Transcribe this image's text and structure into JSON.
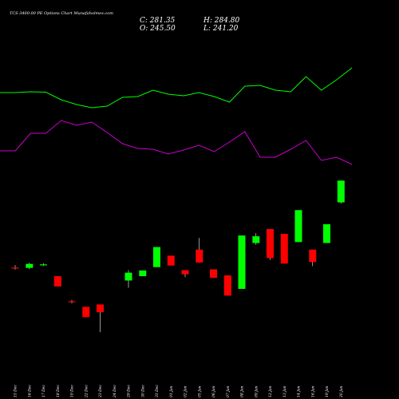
{
  "chart_data": {
    "type": "candlestick",
    "title": "TCS 3400.00 PE Options Chart Munafaholmes.com",
    "ohlc": {
      "close_label": "C: 281.35",
      "high_label": "H: 284.80",
      "open_label": "O: 245.50",
      "low_label": "L: 241.20"
    },
    "x_labels": [
      "15 Dec",
      "16 Dec",
      "17 Dec",
      "18 Dec",
      "19 Dec",
      "22 Dec",
      "23 Dec",
      "24 Dec",
      "29 Dec",
      "30 Dec",
      "31 Dec",
      "01 Jan",
      "02 Jan",
      "05 Jan",
      "06 Jan",
      "07 Jan",
      "08 Jan",
      "09 Jan",
      "12 Jan",
      "13 Jan",
      "14 Jan",
      "16 Jan",
      "19 Jan",
      "20 Jan"
    ],
    "candles": [
      {
        "date": "15 Dec",
        "open": 90.8,
        "high": 92.3,
        "low": 89.5,
        "close": 90.2
      },
      {
        "date": "16 Dec",
        "open": 90.6,
        "high": 93.8,
        "low": 89.8,
        "close": 93.1
      },
      {
        "date": "17 Dec",
        "open": 92.8,
        "high": 93.5,
        "low": 91.9,
        "close": 92.8
      },
      {
        "date": "18 Dec",
        "open": 85.4,
        "high": 85.4,
        "low": 78.9,
        "close": 78.9
      },
      {
        "date": "19 Dec",
        "open": 69.6,
        "high": 70.5,
        "low": 68.3,
        "close": 69.0
      },
      {
        "date": "22 Dec",
        "open": 66.1,
        "high": 66.1,
        "low": 59.6,
        "close": 59.6
      },
      {
        "date": "23 Dec",
        "open": 67.6,
        "high": 67.6,
        "low": 50.1,
        "close": 62.7
      },
      {
        "date": "29 Dec",
        "open": 82.7,
        "high": 89.2,
        "low": 78.1,
        "close": 87.6
      },
      {
        "date": "30 Dec",
        "open": 85.4,
        "high": 89.0,
        "low": 85.4,
        "close": 89.0
      },
      {
        "date": "31 Dec",
        "open": 91.1,
        "high": 103.7,
        "low": 91.1,
        "close": 103.7
      },
      {
        "date": "01 Jan",
        "open": 98.3,
        "high": 98.3,
        "low": 92.1,
        "close": 92.1
      },
      {
        "date": "02 Jan",
        "open": 89.2,
        "high": 89.2,
        "low": 84.8,
        "close": 86.6
      },
      {
        "date": "05 Jan",
        "open": 102.1,
        "high": 109.5,
        "low": 93.8,
        "close": 94.0
      },
      {
        "date": "06 Jan",
        "open": 89.7,
        "high": 89.7,
        "low": 84.3,
        "close": 84.3
      },
      {
        "date": "07 Jan",
        "open": 85.9,
        "high": 85.9,
        "low": 73.2,
        "close": 73.2
      },
      {
        "date": "08 Jan",
        "open": 77.4,
        "high": 111.0,
        "low": 77.4,
        "close": 111.0
      },
      {
        "date": "09 Jan",
        "open": 106.3,
        "high": 112.4,
        "low": 105.2,
        "close": 110.5
      },
      {
        "date": "12 Jan",
        "open": 115.1,
        "high": 115.1,
        "low": 95.7,
        "close": 96.8
      },
      {
        "date": "13 Jan",
        "open": 112.0,
        "high": 112.0,
        "low": 93.3,
        "close": 93.3
      },
      {
        "date": "14 Jan",
        "open": 106.9,
        "high": 127.0,
        "low": 106.9,
        "close": 127.0
      },
      {
        "date": "16 Jan",
        "open": 102.1,
        "high": 102.1,
        "low": 91.7,
        "close": 94.3
      },
      {
        "date": "19 Jan",
        "open": 106.3,
        "high": 118.1,
        "low": 106.3,
        "close": 118.1
      },
      {
        "date": "20 Jan",
        "open": 131.9,
        "high": 145.6,
        "low": 131.0,
        "close": 145.6
      }
    ],
    "band_upper": [
      399.0,
      399.0,
      400.0,
      399.5,
      390.0,
      384.0,
      380.0,
      382.0,
      393.0,
      394.0,
      402.0,
      397.0,
      395.0,
      399.0,
      394.0,
      387.0,
      407.0,
      408.0,
      402.0,
      400.0,
      419.0,
      402.0,
      415.0,
      430.0
    ],
    "band_lower": [
      326.0,
      326.0,
      348.0,
      348.0,
      364.0,
      358.0,
      362.0,
      349.0,
      335.0,
      329.0,
      328.0,
      322.0,
      327.0,
      333.0,
      325.0,
      337.0,
      350.0,
      318.0,
      318.0,
      328.0,
      339.0,
      314.0,
      318.0,
      309.0
    ],
    "upper_color": "#00ff00",
    "lower_color": "#cc00cc",
    "up_color": "#00ff00",
    "down_color": "#ff0000",
    "background": "#000000"
  }
}
